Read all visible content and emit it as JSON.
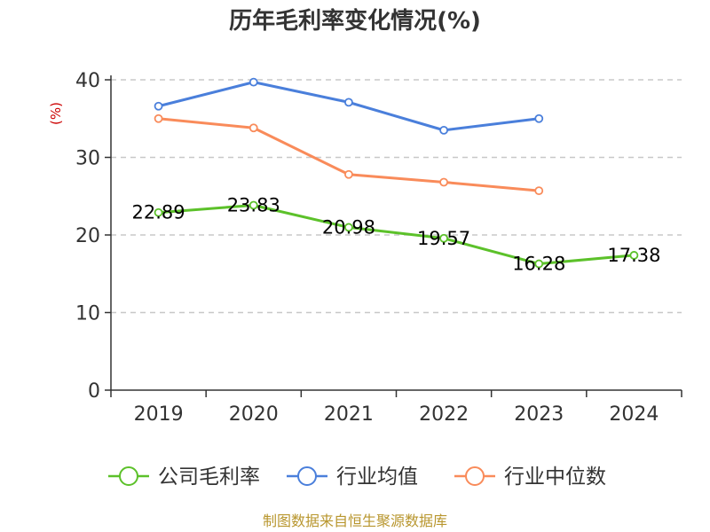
{
  "colors": {
    "company": "#5cc12a",
    "industry_avg": "#4a7fdb",
    "industry_median": "#f98b5a",
    "grid": "#c8c8c8",
    "axis": "#333333",
    "unit": "#cc0000",
    "source": "#b8962e"
  },
  "source_text": "制图数据来自恒生聚源数据库",
  "chart_data": {
    "type": "line",
    "title": "历年毛利率变化情况(%)",
    "ylabel": "(%)",
    "xlabel": "",
    "categories": [
      "2019",
      "2020",
      "2021",
      "2022",
      "2023",
      "2024"
    ],
    "ylim": [
      0,
      40
    ],
    "yticks": [
      0,
      10,
      20,
      30,
      40
    ],
    "grid": true,
    "legend_position": "bottom",
    "series": [
      {
        "key": "company",
        "name": "公司毛利率",
        "values": [
          22.89,
          23.83,
          20.98,
          19.57,
          16.28,
          17.38
        ],
        "labels": [
          "22.89",
          "23.83",
          "20.98",
          "19.57",
          "16.28",
          "17.38"
        ],
        "show_labels": true
      },
      {
        "key": "industry_avg",
        "name": "行业均值",
        "values": [
          36.6,
          39.7,
          37.1,
          33.5,
          35.0,
          null
        ],
        "show_labels": false
      },
      {
        "key": "industry_median",
        "name": "行业中位数",
        "values": [
          35.0,
          33.8,
          27.8,
          26.8,
          25.7,
          null
        ],
        "show_labels": false
      }
    ]
  }
}
